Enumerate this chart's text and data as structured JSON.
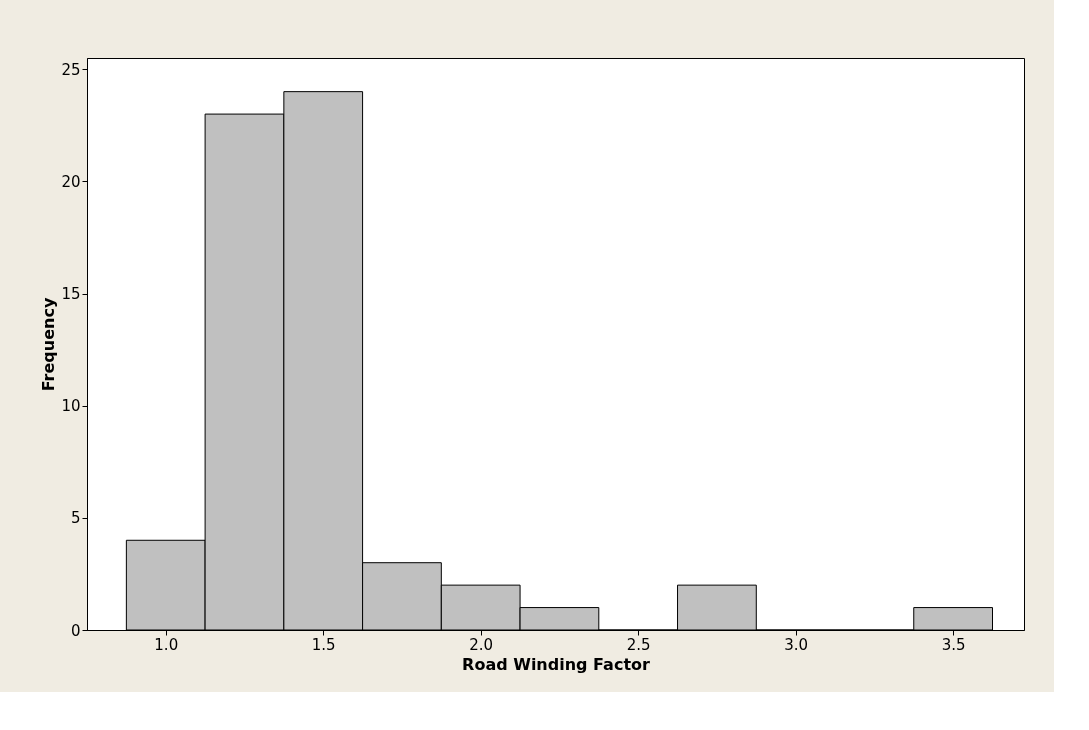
{
  "chart_data": {
    "type": "histogram",
    "xlabel": "Road Winding Factor",
    "ylabel": "Frequency",
    "bins": [
      0.875,
      1.125,
      1.375,
      1.625,
      1.875,
      2.125,
      2.375,
      2.625,
      2.875,
      3.125,
      3.375,
      3.625
    ],
    "values": [
      4,
      23,
      24,
      3,
      2,
      1,
      0,
      2,
      0,
      0,
      1
    ],
    "color": "#c0c0c0",
    "xlim": [
      0.75,
      3.725
    ],
    "ylim": [
      0,
      25.5
    ],
    "xticks": [
      {
        "value": 1,
        "label": "1.0"
      },
      {
        "value": 1.5,
        "label": "1.5"
      },
      {
        "value": 2,
        "label": "2.0"
      },
      {
        "value": 2.5,
        "label": "2.5"
      },
      {
        "value": 3,
        "label": "3.0"
      },
      {
        "value": 3.5,
        "label": "3.5"
      }
    ],
    "yticks": [
      0,
      5,
      10,
      15,
      20,
      25
    ],
    "grid": false
  }
}
